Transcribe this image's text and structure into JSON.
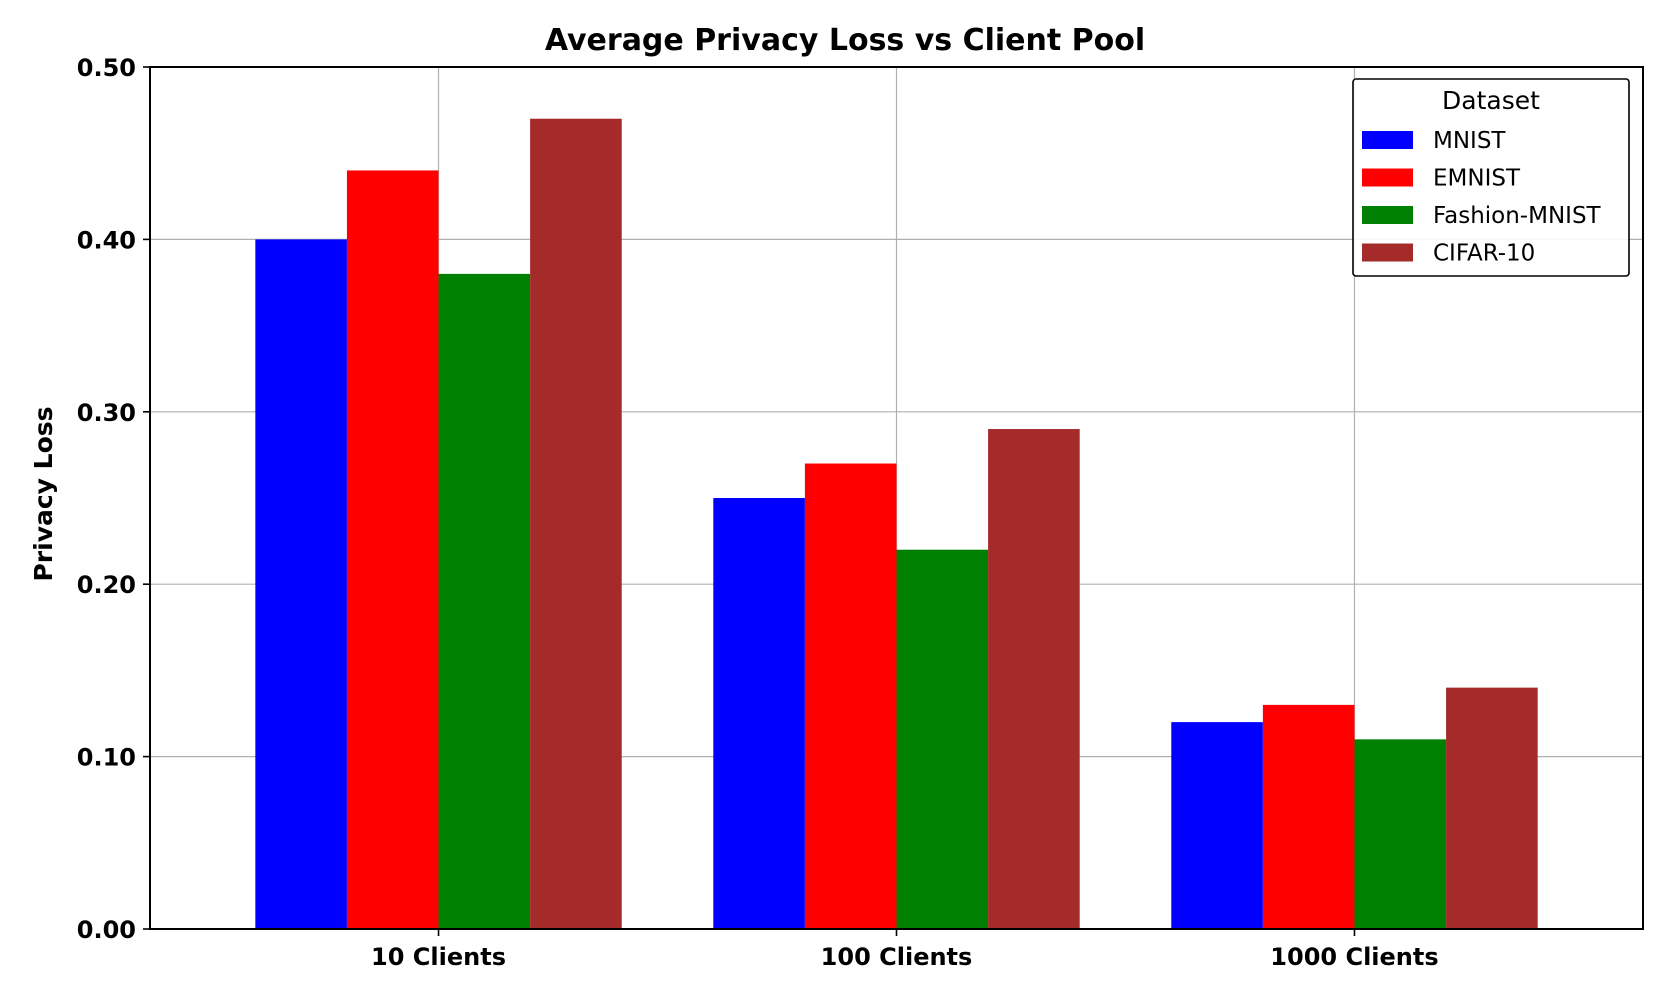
{
  "chart_data": {
    "type": "bar",
    "title": "Average Privacy Loss vs Client Pool",
    "xlabel": "",
    "ylabel": "Privacy Loss",
    "categories": [
      "10 Clients",
      "100 Clients",
      "1000 Clients"
    ],
    "ylim": [
      0,
      0.5
    ],
    "yticks": [
      "0.00",
      "0.10",
      "0.20",
      "0.30",
      "0.40",
      "0.50"
    ],
    "ytick_values": [
      0,
      0.1,
      0.2,
      0.3,
      0.4,
      0.5
    ],
    "grid": true,
    "legend": {
      "title": "Dataset",
      "placement": "top-right"
    },
    "series": [
      {
        "name": "MNIST",
        "color": "#0000ff",
        "values": [
          0.4,
          0.25,
          0.12
        ]
      },
      {
        "name": "EMNIST",
        "color": "#ff0000",
        "values": [
          0.44,
          0.27,
          0.13
        ]
      },
      {
        "name": "Fashion-MNIST",
        "color": "#008000",
        "values": [
          0.38,
          0.22,
          0.11
        ]
      },
      {
        "name": "CIFAR-10",
        "color": "#a52a2a",
        "values": [
          0.47,
          0.29,
          0.14
        ]
      }
    ]
  }
}
